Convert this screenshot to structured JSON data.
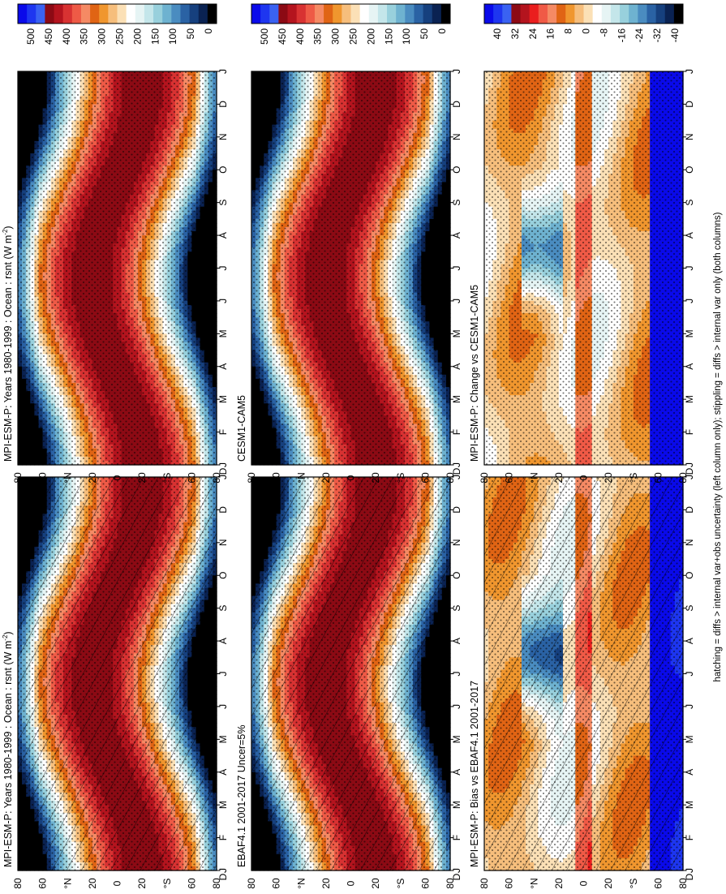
{
  "figure": {
    "footnote": "hatching = diffs > internal var+obs uncertainty (left column only); stippling = diffs > internal var only (both columns)"
  },
  "colors": {
    "abs_scale": [
      "#0a0aea",
      "#1e36f0",
      "#3a62f2",
      "#8c0a14",
      "#b4141e",
      "#d83232",
      "#ee5a46",
      "#f58a64",
      "#e06414",
      "#f0962e",
      "#f6be7c",
      "#fbe0b6",
      "#ffffff",
      "#e6f4f4",
      "#c4e6ea",
      "#98d0dc",
      "#6eb2d0",
      "#4a8cc0",
      "#2a62a4",
      "#16407e",
      "#0a2252",
      "#000000"
    ],
    "diff_scale": [
      "#0a0aea",
      "#1e36f0",
      "#3a62f2",
      "#8c0a14",
      "#b4141e",
      "#ea1e1e",
      "#f05a46",
      "#f58a64",
      "#e06414",
      "#f0962e",
      "#f6be7c",
      "#fbe0b6",
      "#ffffff",
      "#e6f4f4",
      "#c4e6ea",
      "#98d0dc",
      "#6eb2d0",
      "#4a8cc0",
      "#2a62a4",
      "#16407e",
      "#0a2252",
      "#000000"
    ]
  },
  "chart_data": [
    {
      "type": "heatmap",
      "panel": "left-top",
      "title": "MPI-ESM-P: Years 1980-1999 : Ocean : rsnt (W m",
      "title_sup": "-2",
      "title_close": ")",
      "x": [
        "J",
        "F",
        "M",
        "A",
        "M",
        "J",
        "J",
        "A",
        "S",
        "O",
        "N",
        "D",
        "J"
      ],
      "y_ticks": [
        "80",
        "60",
        "°N",
        "20",
        "0",
        "20",
        "°S",
        "60",
        "80"
      ],
      "y_end_label": "D",
      "colorbar_ticks": [
        "500",
        "450",
        "400",
        "350",
        "300",
        "250",
        "200",
        "150",
        "100",
        "50",
        "0"
      ],
      "value_range": [
        0,
        500
      ],
      "hatching": true,
      "stippling": true
    },
    {
      "type": "heatmap",
      "panel": "right-top",
      "title": "MPI-ESM-P: Years 1980-1999 : Ocean : rsnt (W m",
      "title_sup": "-2",
      "title_close": ")",
      "x": [
        "J",
        "F",
        "M",
        "A",
        "M",
        "J",
        "J",
        "A",
        "S",
        "O",
        "N",
        "D",
        "J"
      ],
      "y_ticks": [
        "80",
        "60",
        "°N",
        "20",
        "0",
        "20",
        "°S",
        "60",
        "80"
      ],
      "y_end_label": "D",
      "colorbar_ticks": [
        "500",
        "450",
        "400",
        "350",
        "300",
        "250",
        "200",
        "150",
        "100",
        "50",
        "0"
      ],
      "value_range": [
        0,
        500
      ],
      "hatching": false,
      "stippling": true
    },
    {
      "type": "heatmap",
      "panel": "left-middle",
      "title": "EBAF4.1 2001-2017 Uncer=5%",
      "x": [
        "J",
        "F",
        "M",
        "A",
        "M",
        "J",
        "J",
        "A",
        "S",
        "O",
        "N",
        "D",
        "J"
      ],
      "y_ticks": [
        "80",
        "60",
        "°N",
        "20",
        "0",
        "20",
        "°S",
        "60",
        "80"
      ],
      "y_end_label": "D",
      "colorbar_ticks": [
        "500",
        "450",
        "400",
        "350",
        "300",
        "250",
        "200",
        "150",
        "100",
        "50",
        "0"
      ],
      "value_range": [
        0,
        500
      ],
      "hatching": true,
      "stippling": true
    },
    {
      "type": "heatmap",
      "panel": "right-middle",
      "title": "CESM1-CAM5",
      "x": [
        "J",
        "F",
        "M",
        "A",
        "M",
        "J",
        "J",
        "A",
        "S",
        "O",
        "N",
        "D",
        "J"
      ],
      "y_ticks": [
        "80",
        "60",
        "°N",
        "20",
        "0",
        "20",
        "°S",
        "60",
        "80"
      ],
      "y_end_label": "D",
      "colorbar_ticks": [
        "500",
        "450",
        "400",
        "350",
        "300",
        "250",
        "200",
        "150",
        "100",
        "50",
        "0"
      ],
      "value_range": [
        0,
        500
      ],
      "hatching": false,
      "stippling": true
    },
    {
      "type": "heatmap",
      "panel": "left-bottom",
      "title": "MPI-ESM-P: Bias vs EBAF4.1 2001-2017",
      "x": [
        "J",
        "F",
        "M",
        "A",
        "M",
        "J",
        "J",
        "A",
        "S",
        "O",
        "N",
        "D",
        "J"
      ],
      "y_ticks": [
        "80",
        "60",
        "°N",
        "20",
        "0",
        "20",
        "°S",
        "60",
        "80"
      ],
      "y_end_label": "D",
      "colorbar_ticks": [
        "40",
        "32",
        "24",
        "16",
        "8",
        "0",
        "-8",
        "-16",
        "-24",
        "-32",
        "-40"
      ],
      "value_range": [
        -40,
        40
      ],
      "hatching": true,
      "stippling": true
    },
    {
      "type": "heatmap",
      "panel": "right-bottom",
      "title": "MPI-ESM-P: Change vs CESM1-CAM5",
      "x": [
        "J",
        "F",
        "M",
        "A",
        "M",
        "J",
        "J",
        "A",
        "S",
        "O",
        "N",
        "D",
        "J"
      ],
      "y_ticks": [
        "80",
        "60",
        "°N",
        "20",
        "0",
        "20",
        "°S",
        "60",
        "80"
      ],
      "y_end_label": "D",
      "colorbar_ticks": [
        "40",
        "32",
        "24",
        "16",
        "8",
        "0",
        "-8",
        "-16",
        "-24",
        "-32",
        "-40"
      ],
      "value_range": [
        -40,
        40
      ],
      "hatching": false,
      "stippling": true
    }
  ]
}
